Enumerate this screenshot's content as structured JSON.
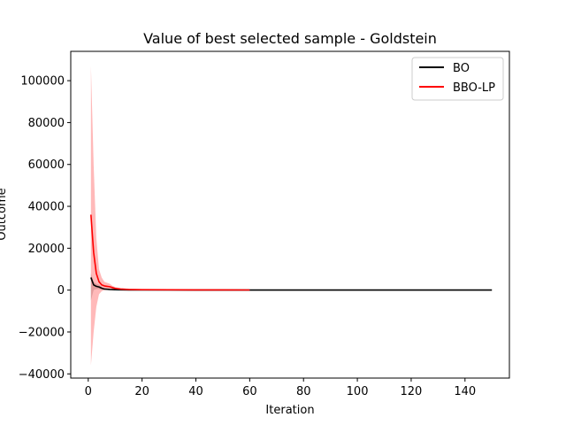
{
  "chart_data": {
    "type": "line",
    "title": "Value of best selected sample - Goldstein",
    "xlabel": "Iteration",
    "ylabel": "Outcome",
    "xlim": [
      -6.5,
      156.5
    ],
    "ylim": [
      -42000,
      114000
    ],
    "xticks": [
      0,
      20,
      40,
      60,
      80,
      100,
      120,
      140
    ],
    "yticks": [
      -40000,
      -20000,
      0,
      20000,
      40000,
      60000,
      80000,
      100000
    ],
    "grid": false,
    "legend_position": "top-right",
    "series": [
      {
        "name": "BO",
        "color": "#000000",
        "band_color": "#808080",
        "x": [
          1,
          2,
          3,
          4,
          5,
          6,
          7,
          8,
          10,
          12,
          15,
          20,
          30,
          40,
          60,
          80,
          100,
          120,
          150
        ],
        "y": [
          6000,
          2500,
          1800,
          1500,
          900,
          500,
          400,
          300,
          200,
          150,
          100,
          80,
          60,
          50,
          40,
          40,
          40,
          40,
          40
        ],
        "upper": [
          8000,
          4000,
          3000,
          2500,
          1500,
          900,
          700,
          500,
          300,
          200,
          150,
          120,
          90,
          70,
          60,
          60,
          60,
          60,
          60
        ],
        "lower": [
          -5000,
          0,
          500,
          500,
          200,
          100,
          100,
          100,
          50,
          50,
          50,
          40,
          30,
          30,
          20,
          20,
          20,
          20,
          20
        ]
      },
      {
        "name": "BBO-LP",
        "color": "#ff0000",
        "band_color": "#ff8080",
        "x": [
          1,
          2,
          3,
          4,
          5,
          6,
          7,
          8,
          9,
          10,
          12,
          15,
          20,
          30,
          40,
          50,
          60
        ],
        "y": [
          36000,
          18000,
          8000,
          4000,
          2500,
          2000,
          1800,
          1600,
          1200,
          800,
          500,
          300,
          200,
          150,
          100,
          80,
          70
        ],
        "upper": [
          107000,
          60000,
          25000,
          10000,
          6000,
          4000,
          3500,
          3000,
          2000,
          1500,
          900,
          600,
          400,
          300,
          200,
          150,
          120
        ],
        "lower": [
          -36000,
          -20000,
          -8000,
          -2000,
          -500,
          0,
          200,
          200,
          300,
          200,
          100,
          50,
          30,
          30,
          30,
          30,
          30
        ]
      }
    ]
  }
}
